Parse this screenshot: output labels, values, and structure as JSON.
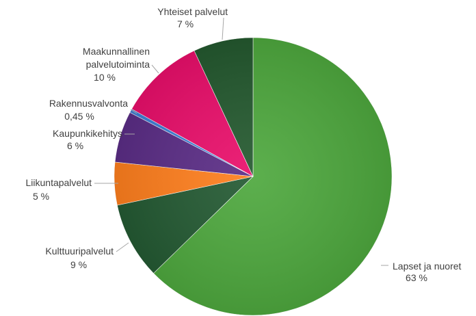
{
  "chart_data": {
    "type": "pie",
    "title": "",
    "slices": [
      {
        "label": "Lapset ja nuoret",
        "value": 63,
        "value_text": "63 %",
        "color": "#4ea83e"
      },
      {
        "label": "Kulttuuripalvelut",
        "value": 9,
        "value_text": "9 %",
        "color": "#245a33"
      },
      {
        "label": "Liikuntapalvelut",
        "value": 5,
        "value_text": "5 %",
        "color": "#ff7f1e"
      },
      {
        "label": "Kaupunkikehitys",
        "value": 6,
        "value_text": "6 %",
        "color": "#5b2d86"
      },
      {
        "label": "Rakennusvalvonta",
        "value": 0.45,
        "value_text": "0,45 %",
        "color": "#3f7fd6"
      },
      {
        "label": "Maakunnallinen palvelutoiminta",
        "value": 10,
        "value_text": "10 %",
        "color": "#ea0f6b"
      },
      {
        "label": "Yhteiset palvelut",
        "value": 7,
        "value_text": "7 %",
        "color": "#24592f"
      }
    ],
    "start_angle": "12 o'clock",
    "direction": "clockwise",
    "legend": "none (data labels with leader lines)"
  }
}
